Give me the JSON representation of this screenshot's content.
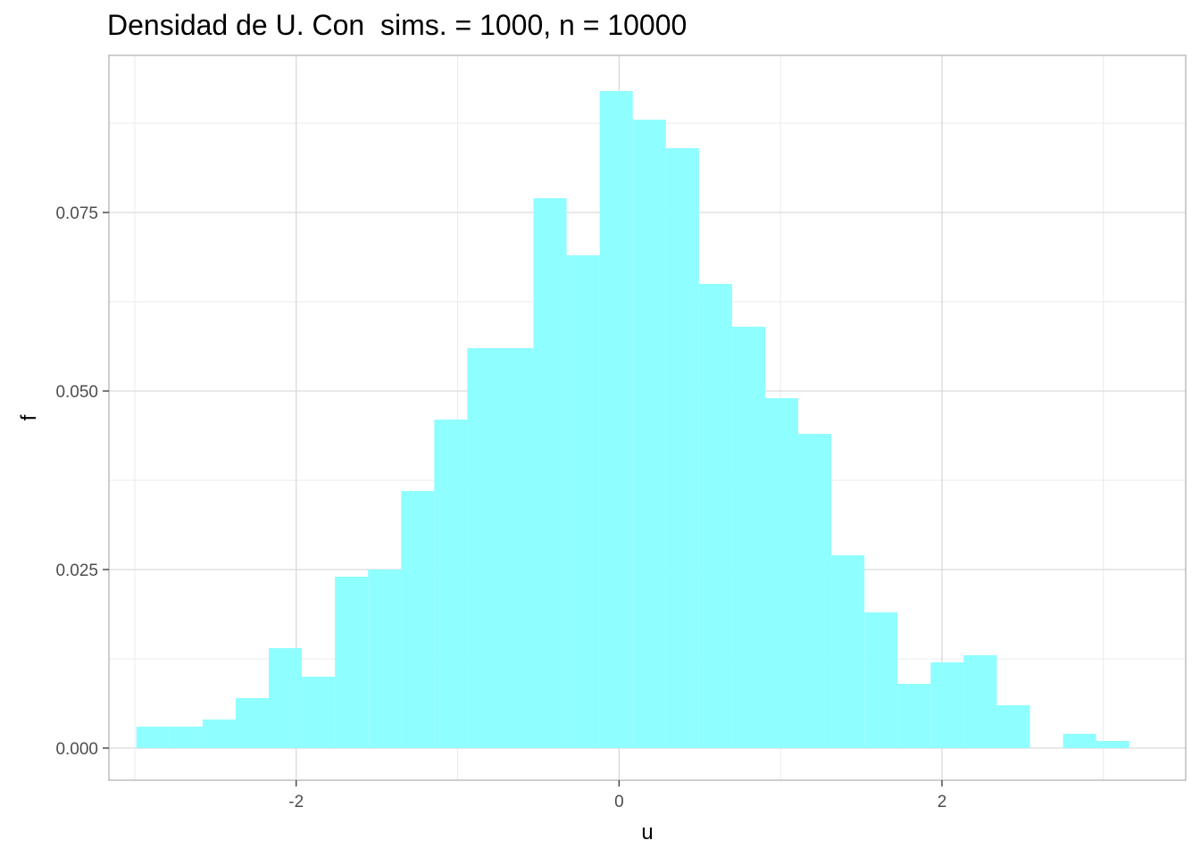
{
  "chart_data": {
    "type": "histogram",
    "title": "Densidad de U. Con  sims. = 1000, n = 10000",
    "xlabel": "u",
    "ylabel": "f",
    "xlim": [
      -3.16,
      3.51
    ],
    "ylim": [
      -0.0045,
      0.097
    ],
    "x_ticks": [
      -2,
      0,
      2
    ],
    "x_tick_labels": [
      "-2",
      "0",
      "2"
    ],
    "y_ticks": [
      0,
      0.025,
      0.05,
      0.075
    ],
    "y_tick_labels": [
      "0.000",
      "0.025",
      "0.050",
      "0.075"
    ],
    "bin_width": 0.205,
    "bin_starts": [
      -2.99,
      -2.785,
      -2.58,
      -2.375,
      -2.17,
      -1.965,
      -1.76,
      -1.555,
      -1.35,
      -1.145,
      -0.94,
      -0.735,
      -0.53,
      -0.325,
      -0.12,
      0.085,
      0.29,
      0.495,
      0.7,
      0.905,
      1.11,
      1.315,
      1.52,
      1.725,
      1.93,
      2.135,
      2.34,
      2.545,
      2.75,
      2.955,
      3.16
    ],
    "values": [
      0.003,
      0.003,
      0.004,
      0.007,
      0.014,
      0.01,
      0.024,
      0.025,
      0.036,
      0.046,
      0.056,
      0.056,
      0.077,
      0.069,
      0.092,
      0.088,
      0.084,
      0.065,
      0.059,
      0.049,
      0.044,
      0.027,
      0.019,
      0.009,
      0.012,
      0.013,
      0.006,
      0.0,
      0.002,
      0.001,
      0.0
    ],
    "fill_color": "#8ffeff",
    "grid": true,
    "legend": "none"
  }
}
